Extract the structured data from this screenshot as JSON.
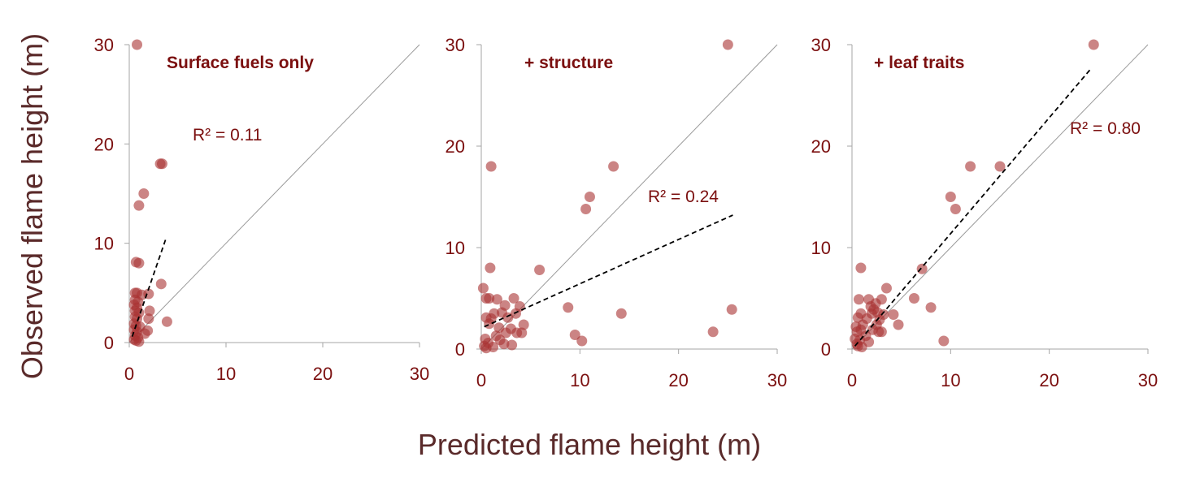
{
  "figure": {
    "y_label": "Observed flame height (m)",
    "x_label": "Predicted flame height (m)",
    "point_color": "#a83232",
    "text_color": "#7b0f0f"
  },
  "chart_data": [
    {
      "type": "scatter",
      "title": "Surface fuels only",
      "r2_label": "R² = 0.11",
      "xlim": [
        0,
        30
      ],
      "ylim": [
        0,
        30
      ],
      "xticks": [
        0,
        10,
        20,
        30
      ],
      "yticks": [
        0,
        10,
        20,
        30
      ],
      "one_to_one_line": true,
      "fit_line": {
        "x": [
          0.3,
          3.8
        ],
        "y": [
          0.6,
          10.5
        ]
      },
      "points": [
        {
          "x": 0.8,
          "y": 30
        },
        {
          "x": 3.2,
          "y": 18
        },
        {
          "x": 3.4,
          "y": 18
        },
        {
          "x": 1.5,
          "y": 15
        },
        {
          "x": 1.0,
          "y": 13.8
        },
        {
          "x": 0.7,
          "y": 8.1
        },
        {
          "x": 1.0,
          "y": 8.0
        },
        {
          "x": 3.3,
          "y": 5.9
        },
        {
          "x": 0.6,
          "y": 5.0
        },
        {
          "x": 0.8,
          "y": 5.0
        },
        {
          "x": 1.3,
          "y": 4.8
        },
        {
          "x": 2.0,
          "y": 4.9
        },
        {
          "x": 0.6,
          "y": 4.3
        },
        {
          "x": 0.9,
          "y": 4.1
        },
        {
          "x": 0.5,
          "y": 3.8
        },
        {
          "x": 0.8,
          "y": 3.5
        },
        {
          "x": 0.6,
          "y": 3.2
        },
        {
          "x": 1.0,
          "y": 3.0
        },
        {
          "x": 2.1,
          "y": 3.2
        },
        {
          "x": 0.6,
          "y": 2.6
        },
        {
          "x": 0.8,
          "y": 2.4
        },
        {
          "x": 2.0,
          "y": 2.4
        },
        {
          "x": 3.9,
          "y": 2.1
        },
        {
          "x": 0.5,
          "y": 1.9
        },
        {
          "x": 0.7,
          "y": 1.7
        },
        {
          "x": 1.1,
          "y": 1.6
        },
        {
          "x": 0.5,
          "y": 1.3
        },
        {
          "x": 0.8,
          "y": 1.1
        },
        {
          "x": 1.9,
          "y": 1.2
        },
        {
          "x": 1.6,
          "y": 0.9
        },
        {
          "x": 0.6,
          "y": 0.7
        },
        {
          "x": 0.9,
          "y": 0.5
        },
        {
          "x": 0.5,
          "y": 0.3
        },
        {
          "x": 0.7,
          "y": 0.2
        },
        {
          "x": 1.0,
          "y": 0.1
        }
      ]
    },
    {
      "type": "scatter",
      "title": "+ structure",
      "r2_label": "R² = 0.24",
      "xlim": [
        0,
        30
      ],
      "ylim": [
        0,
        30
      ],
      "xticks": [
        0,
        10,
        20,
        30
      ],
      "yticks": [
        0,
        10,
        20,
        30
      ],
      "one_to_one_line": true,
      "fit_line": {
        "x": [
          0.3,
          25.5
        ],
        "y": [
          2.2,
          13.2
        ]
      },
      "points": [
        {
          "x": 25.0,
          "y": 30
        },
        {
          "x": 1.0,
          "y": 18
        },
        {
          "x": 13.4,
          "y": 18
        },
        {
          "x": 11.0,
          "y": 15
        },
        {
          "x": 10.6,
          "y": 13.8
        },
        {
          "x": 0.9,
          "y": 8.0
        },
        {
          "x": 5.9,
          "y": 7.8
        },
        {
          "x": 0.2,
          "y": 6.0
        },
        {
          "x": 0.5,
          "y": 5.0
        },
        {
          "x": 0.8,
          "y": 5.0
        },
        {
          "x": 1.6,
          "y": 4.9
        },
        {
          "x": 3.3,
          "y": 5.0
        },
        {
          "x": 2.4,
          "y": 4.3
        },
        {
          "x": 3.9,
          "y": 4.2
        },
        {
          "x": 8.8,
          "y": 4.1
        },
        {
          "x": 25.4,
          "y": 3.9
        },
        {
          "x": 1.3,
          "y": 3.5
        },
        {
          "x": 2.1,
          "y": 3.6
        },
        {
          "x": 3.5,
          "y": 3.5
        },
        {
          "x": 14.2,
          "y": 3.5
        },
        {
          "x": 0.5,
          "y": 3.1
        },
        {
          "x": 1.0,
          "y": 3.0
        },
        {
          "x": 2.7,
          "y": 3.1
        },
        {
          "x": 0.8,
          "y": 2.5
        },
        {
          "x": 4.3,
          "y": 2.4
        },
        {
          "x": 1.8,
          "y": 2.1
        },
        {
          "x": 3.0,
          "y": 2.0
        },
        {
          "x": 2.5,
          "y": 1.6
        },
        {
          "x": 3.6,
          "y": 1.6
        },
        {
          "x": 4.1,
          "y": 1.6
        },
        {
          "x": 23.5,
          "y": 1.7
        },
        {
          "x": 9.5,
          "y": 1.4
        },
        {
          "x": 1.5,
          "y": 1.3
        },
        {
          "x": 0.4,
          "y": 1.0
        },
        {
          "x": 1.9,
          "y": 0.9
        },
        {
          "x": 10.2,
          "y": 0.8
        },
        {
          "x": 0.7,
          "y": 0.6
        },
        {
          "x": 2.3,
          "y": 0.5
        },
        {
          "x": 3.1,
          "y": 0.4
        },
        {
          "x": 0.3,
          "y": 0.3
        },
        {
          "x": 1.2,
          "y": 0.2
        },
        {
          "x": 0.5,
          "y": 0.1
        }
      ]
    },
    {
      "type": "scatter",
      "title": "+ leaf traits",
      "r2_label": "R² = 0.80",
      "xlim": [
        0,
        30
      ],
      "ylim": [
        0,
        30
      ],
      "xticks": [
        0,
        10,
        20,
        30
      ],
      "yticks": [
        0,
        10,
        20,
        30
      ],
      "one_to_one_line": true,
      "fit_line": {
        "x": [
          0.3,
          24.2
        ],
        "y": [
          0.3,
          27.6
        ]
      },
      "points": [
        {
          "x": 24.5,
          "y": 30
        },
        {
          "x": 12.0,
          "y": 18
        },
        {
          "x": 15.0,
          "y": 18
        },
        {
          "x": 10.0,
          "y": 15
        },
        {
          "x": 10.5,
          "y": 13.8
        },
        {
          "x": 0.9,
          "y": 8.0
        },
        {
          "x": 7.1,
          "y": 7.9
        },
        {
          "x": 3.5,
          "y": 6.0
        },
        {
          "x": 0.7,
          "y": 4.9
        },
        {
          "x": 1.7,
          "y": 4.9
        },
        {
          "x": 6.3,
          "y": 5.0
        },
        {
          "x": 3.0,
          "y": 4.9
        },
        {
          "x": 2.4,
          "y": 4.5
        },
        {
          "x": 1.9,
          "y": 4.2
        },
        {
          "x": 8.0,
          "y": 4.1
        },
        {
          "x": 2.2,
          "y": 3.9
        },
        {
          "x": 0.9,
          "y": 3.5
        },
        {
          "x": 2.0,
          "y": 3.5
        },
        {
          "x": 2.6,
          "y": 3.6
        },
        {
          "x": 4.2,
          "y": 3.4
        },
        {
          "x": 3.2,
          "y": 3.4
        },
        {
          "x": 0.6,
          "y": 3.1
        },
        {
          "x": 1.5,
          "y": 3.0
        },
        {
          "x": 2.8,
          "y": 2.9
        },
        {
          "x": 0.4,
          "y": 2.2
        },
        {
          "x": 1.1,
          "y": 2.4
        },
        {
          "x": 2.5,
          "y": 2.4
        },
        {
          "x": 4.7,
          "y": 2.4
        },
        {
          "x": 0.9,
          "y": 1.9
        },
        {
          "x": 2.1,
          "y": 1.9
        },
        {
          "x": 0.5,
          "y": 1.7
        },
        {
          "x": 2.7,
          "y": 1.7
        },
        {
          "x": 3.0,
          "y": 1.7
        },
        {
          "x": 1.4,
          "y": 1.3
        },
        {
          "x": 0.3,
          "y": 1.0
        },
        {
          "x": 0.8,
          "y": 0.9
        },
        {
          "x": 1.7,
          "y": 0.7
        },
        {
          "x": 9.3,
          "y": 0.8
        },
        {
          "x": 0.5,
          "y": 0.5
        },
        {
          "x": 0.6,
          "y": 0.3
        },
        {
          "x": 1.0,
          "y": 0.2
        }
      ]
    }
  ]
}
